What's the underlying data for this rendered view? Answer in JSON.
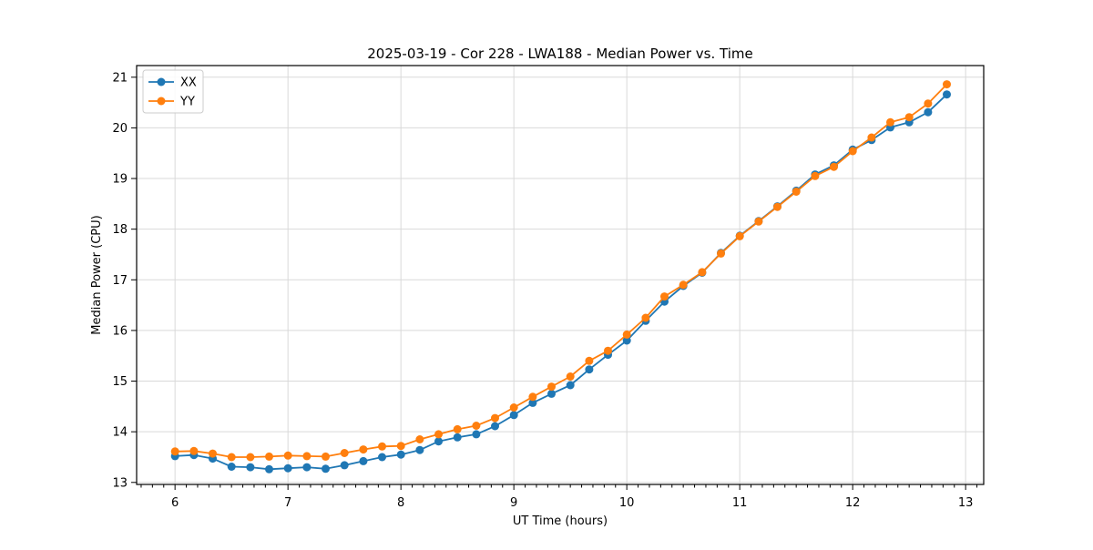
{
  "figure": {
    "title": "2025-03-19 - Cor 228 - LWA188 - Median Power vs. Time",
    "background_color": "#ffffff"
  },
  "chart_data": {
    "type": "line",
    "title": "2025-03-19 - Cor 228 - LWA188 - Median Power vs. Time",
    "xlabel": "UT Time (hours)",
    "ylabel": "Median Power (CPU)",
    "xlim": [
      5.66,
      13.16
    ],
    "ylim": [
      12.96,
      21.23
    ],
    "x_ticks": [
      6,
      7,
      8,
      9,
      10,
      11,
      12,
      13
    ],
    "y_ticks": [
      13,
      14,
      15,
      16,
      17,
      18,
      19,
      20,
      21
    ],
    "x_minor_tick_step": 0.1,
    "grid": true,
    "grid_color": "#d9d9d9",
    "legend_position": "upper-left",
    "legend_entries": [
      "XX",
      "YY"
    ],
    "x": [
      6.0,
      6.167,
      6.333,
      6.5,
      6.667,
      6.833,
      7.0,
      7.167,
      7.333,
      7.5,
      7.667,
      7.833,
      8.0,
      8.167,
      8.333,
      8.5,
      8.667,
      8.833,
      9.0,
      9.167,
      9.333,
      9.5,
      9.667,
      9.833,
      10.0,
      10.167,
      10.333,
      10.5,
      10.667,
      10.833,
      11.0,
      11.167,
      11.333,
      11.5,
      11.667,
      11.833,
      12.0,
      12.167,
      12.333,
      12.5,
      12.667,
      12.833
    ],
    "series": [
      {
        "name": "XX",
        "color": "#1f77b4",
        "values": [
          13.52,
          13.54,
          13.47,
          13.31,
          13.3,
          13.26,
          13.28,
          13.3,
          13.27,
          13.34,
          13.42,
          13.5,
          13.55,
          13.64,
          13.81,
          13.89,
          13.95,
          14.11,
          14.33,
          14.57,
          14.75,
          14.92,
          15.23,
          15.52,
          15.8,
          16.19,
          16.57,
          16.88,
          17.14,
          17.53,
          17.87,
          18.16,
          18.45,
          18.76,
          19.08,
          19.26,
          19.57,
          19.76,
          20.01,
          20.11,
          20.31,
          20.66
        ]
      },
      {
        "name": "YY",
        "color": "#ff7f0e",
        "values": [
          13.61,
          13.62,
          13.57,
          13.5,
          13.5,
          13.51,
          13.53,
          13.52,
          13.51,
          13.58,
          13.65,
          13.71,
          13.72,
          13.85,
          13.95,
          14.05,
          14.12,
          14.27,
          14.48,
          14.69,
          14.89,
          15.09,
          15.4,
          15.6,
          15.92,
          16.25,
          16.67,
          16.9,
          17.15,
          17.52,
          17.86,
          18.15,
          18.44,
          18.74,
          19.05,
          19.23,
          19.54,
          19.81,
          20.11,
          20.21,
          20.48,
          20.86
        ]
      }
    ]
  }
}
